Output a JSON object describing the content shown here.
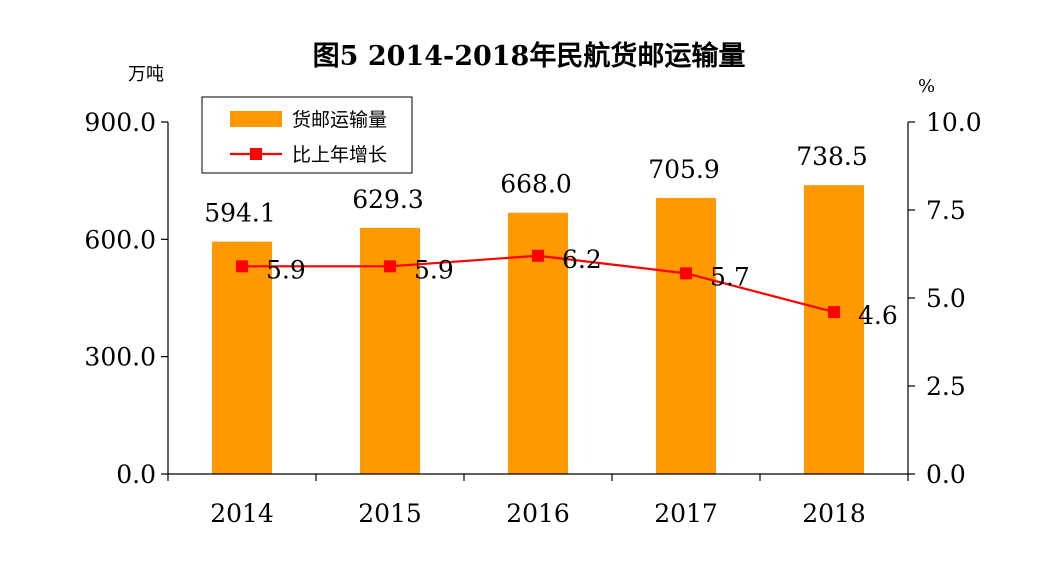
{
  "chart_data": {
    "type": "bar",
    "title": "图5 2014-2018年民航货邮运输量",
    "y_left_unit": "万吨",
    "y_right_unit": "%",
    "categories": [
      "2014",
      "2015",
      "2016",
      "2017",
      "2018"
    ],
    "y_left_ticks": [
      "0.0",
      "300.0",
      "600.0",
      "900.0"
    ],
    "y_right_ticks": [
      "0.0",
      "2.5",
      "5.0",
      "7.5",
      "10.0"
    ],
    "y_left_range": [
      0,
      900
    ],
    "y_right_range": [
      0,
      10
    ],
    "series": [
      {
        "name": "货邮运输量",
        "type": "bar",
        "axis": "left",
        "color": "#FF9900",
        "values": [
          594.1,
          629.3,
          668.0,
          705.9,
          738.5
        ],
        "labels": [
          "594.1",
          "629.3",
          "668.0",
          "705.9",
          "738.5"
        ]
      },
      {
        "name": "比上年增长",
        "type": "line",
        "axis": "right",
        "color": "#FF0000",
        "values": [
          5.9,
          5.9,
          6.2,
          5.7,
          4.6
        ],
        "labels": [
          "5.9",
          "5.9",
          "6.2",
          "5.7",
          "4.6"
        ]
      }
    ],
    "legend": "top-left",
    "grid": false
  }
}
